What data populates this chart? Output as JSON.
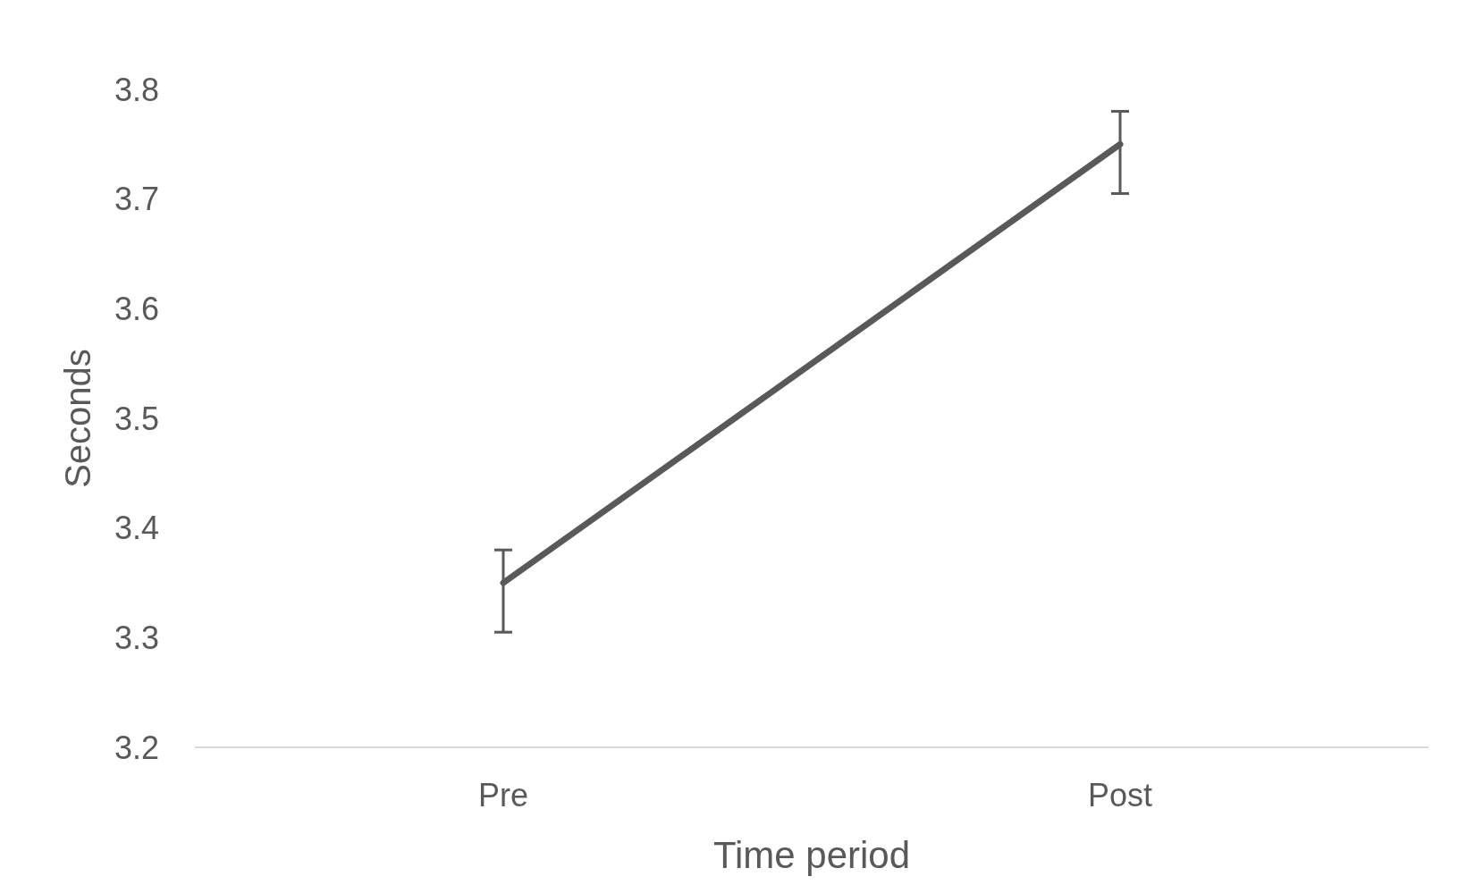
{
  "chart_data": {
    "type": "line",
    "xlabel": "Time period",
    "ylabel": "Seconds",
    "categories": [
      "Pre",
      "Post"
    ],
    "series": [
      {
        "color": "#595959",
        "values": [
          3.35,
          3.75
        ],
        "errors": [
          [
            3.305,
            3.38
          ],
          [
            3.705,
            3.78
          ]
        ]
      }
    ],
    "ylim": [
      3.2,
      3.8
    ],
    "yticks": [
      3.2,
      3.3,
      3.4,
      3.5,
      3.6,
      3.7,
      3.8
    ],
    "marker": "none",
    "line_style": "solid"
  }
}
